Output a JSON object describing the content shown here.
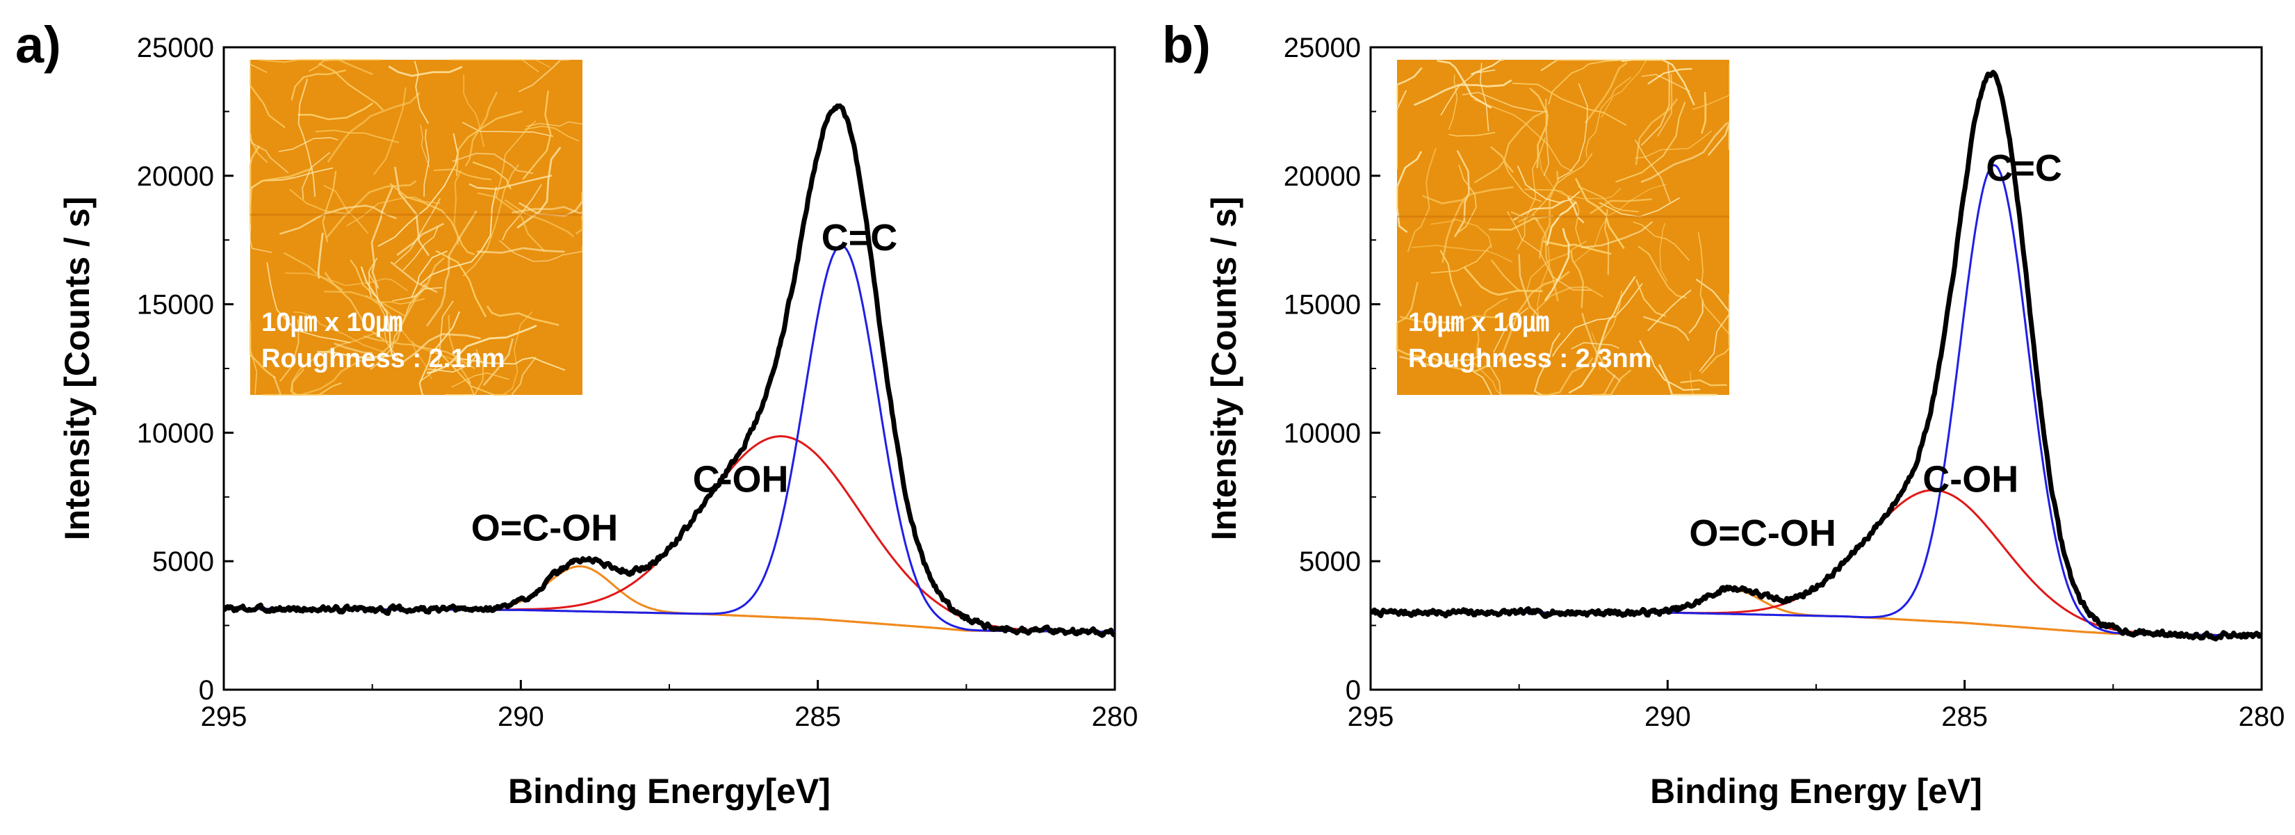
{
  "figure": {
    "background": "#ffffff"
  },
  "chart_data": [
    {
      "type": "line",
      "panel_label": "a)",
      "xlabel": "Binding Energy[eV]",
      "ylabel": "Intensity [Counts / s]",
      "xlim": [
        295,
        280
      ],
      "ylim": [
        0,
        25000
      ],
      "x_ticks": [
        295,
        290,
        285,
        280
      ],
      "y_ticks": [
        0,
        5000,
        10000,
        15000,
        20000,
        25000
      ],
      "grid": false,
      "inset": {
        "scale": "10㎛ x 10㎛",
        "roughness": "Roughness : 2.1nm",
        "color": "#e8900f",
        "fiber_seed": 11
      },
      "baseline": {
        "color": "#f08a1c",
        "points": [
          [
            295,
            3150
          ],
          [
            290,
            3100
          ],
          [
            287,
            2950
          ],
          [
            285,
            2750
          ],
          [
            283,
            2400
          ],
          [
            282.5,
            2300
          ],
          [
            280,
            2250
          ]
        ]
      },
      "components": [
        {
          "name": "C=C",
          "color": "#1f1fe6",
          "center": 284.6,
          "amplitude": 14600,
          "fwhm": 1.45
        },
        {
          "name": "C-OH",
          "color": "#e01818",
          "center": 285.6,
          "amplitude": 7050,
          "fwhm": 3.1
        },
        {
          "name": "O=C-OH",
          "color": "#f08a1c",
          "center": 289.0,
          "amplitude": 1750,
          "fwhm": 1.3
        }
      ],
      "annotations": [
        {
          "text": "C=C",
          "x": 284.3,
          "y": 17100
        },
        {
          "text": "C-OH",
          "x": 286.3,
          "y": 7700
        },
        {
          "text": "O=C-OH",
          "x": 289.6,
          "y": 5800
        }
      ],
      "measured": {
        "color": "#000000",
        "noise_amp": 90,
        "noise_seed": 3,
        "max_intensity": 21800
      }
    },
    {
      "type": "line",
      "panel_label": "b)",
      "xlabel": "Binding Energy [eV]",
      "ylabel": "Intensity [Counts / s]",
      "xlim": [
        295,
        280
      ],
      "ylim": [
        0,
        25000
      ],
      "x_ticks": [
        295,
        290,
        285,
        280
      ],
      "y_ticks": [
        0,
        5000,
        10000,
        15000,
        20000,
        25000
      ],
      "grid": false,
      "inset": {
        "scale": "10㎛ x 10㎛",
        "roughness": "Roughness : 2.3nm",
        "color": "#e8900f",
        "fiber_seed": 29
      },
      "baseline": {
        "color": "#f08a1c",
        "points": [
          [
            295,
            3000
          ],
          [
            290,
            3000
          ],
          [
            287,
            2850
          ],
          [
            285,
            2600
          ],
          [
            283,
            2250
          ],
          [
            282.5,
            2180
          ],
          [
            280,
            2100
          ]
        ]
      },
      "components": [
        {
          "name": "C=C",
          "color": "#1f1fe6",
          "center": 284.5,
          "amplitude": 17900,
          "fwhm": 1.35
        },
        {
          "name": "C-OH",
          "color": "#e01818",
          "center": 285.5,
          "amplitude": 5100,
          "fwhm": 2.7
        },
        {
          "name": "O=C-OH",
          "color": "#f08a1c",
          "center": 288.9,
          "amplitude": 950,
          "fwhm": 1.1
        }
      ],
      "annotations": [
        {
          "text": "C=C",
          "x": 284.0,
          "y": 19800
        },
        {
          "text": "C-OH",
          "x": 284.9,
          "y": 7700
        },
        {
          "text": "O=C-OH",
          "x": 288.4,
          "y": 5600
        }
      ],
      "measured": {
        "color": "#000000",
        "noise_amp": 90,
        "noise_seed": 7,
        "max_intensity": 23600
      }
    }
  ]
}
